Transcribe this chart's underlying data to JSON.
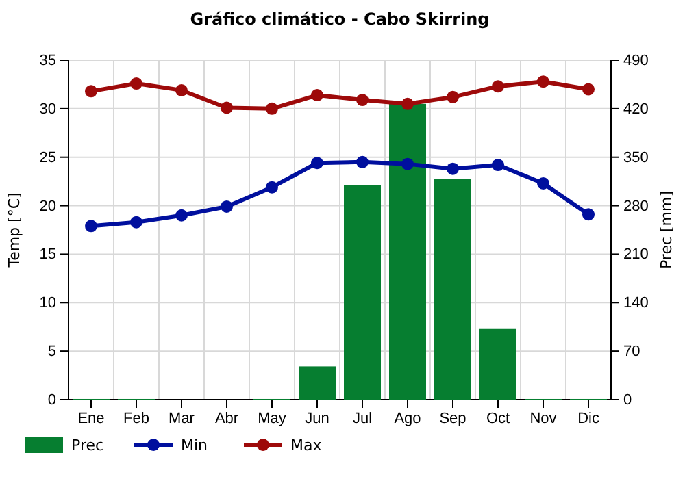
{
  "chart_data": {
    "type": "bar",
    "title": "Gráfico climático - Cabo Skirring",
    "ylabel": "Temp [°C]",
    "y2label": "Prec [mm]",
    "categories": [
      "Ene",
      "Feb",
      "Mar",
      "Abr",
      "May",
      "Jun",
      "Jul",
      "Ago",
      "Sep",
      "Oct",
      "Nov",
      "Dic"
    ],
    "series": [
      {
        "name": "Prec",
        "axis": "y2",
        "color": "#067e30",
        "values": [
          1,
          1,
          0,
          0,
          1,
          48,
          310,
          427,
          319,
          102,
          1,
          1
        ]
      },
      {
        "name": "Min",
        "type": "line",
        "color": "#000f9e",
        "values": [
          17.9,
          18.3,
          19.0,
          19.9,
          21.9,
          24.4,
          24.5,
          24.3,
          23.8,
          24.2,
          22.3,
          19.1
        ]
      },
      {
        "name": "Max",
        "type": "line",
        "color": "#9e0a0a",
        "values": [
          31.8,
          32.6,
          31.9,
          30.1,
          30.0,
          31.4,
          30.9,
          30.5,
          31.2,
          32.3,
          32.8,
          32.0
        ]
      }
    ],
    "ylim": [
      0,
      35
    ],
    "yticks": [
      0,
      5,
      10,
      15,
      20,
      25,
      30,
      35
    ],
    "y2lim": [
      0,
      490
    ],
    "y2ticks": [
      0,
      70,
      140,
      210,
      280,
      350,
      420,
      490
    ],
    "grid": true,
    "legend": "bottom left",
    "marker": "circle"
  }
}
